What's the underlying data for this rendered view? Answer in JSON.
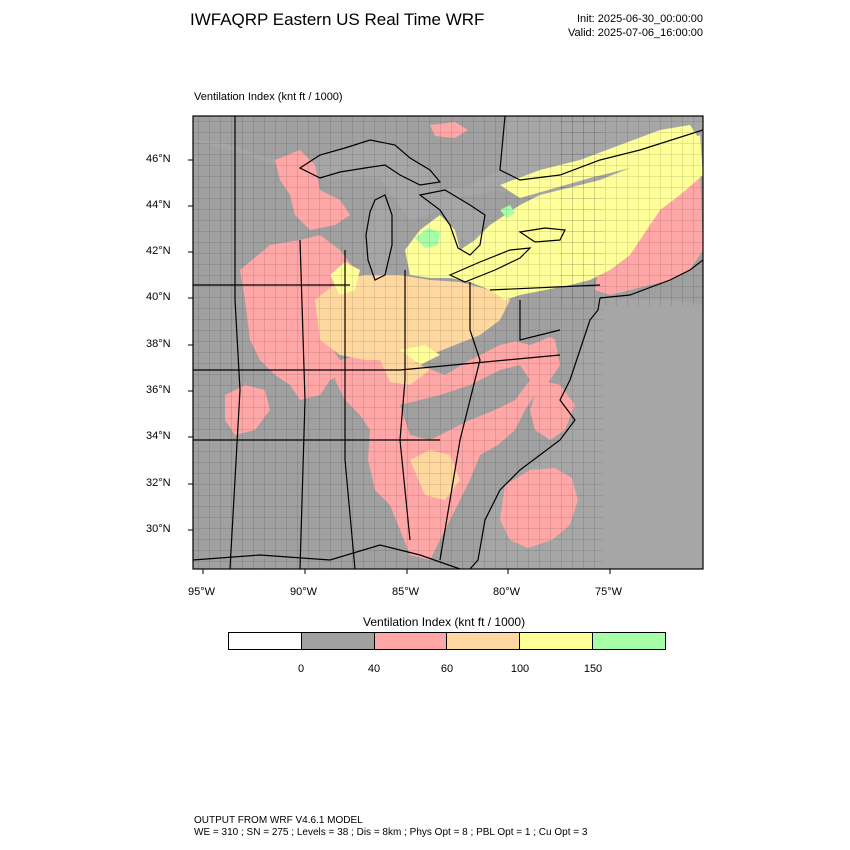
{
  "header": {
    "title": "IWFAQRP Eastern US Real Time WRF",
    "init": "Init: 2025-06-30_00:00:00",
    "valid": "Valid: 2025-07-06_16:00:00"
  },
  "field_label": "Ventilation Index   (knt ft / 1000)",
  "map": {
    "lat_labels": [
      "46°N",
      "44°N",
      "42°N",
      "40°N",
      "38°N",
      "36°N",
      "34°N",
      "32°N",
      "30°N"
    ],
    "lon_labels": [
      "95°W",
      "90°W",
      "85°W",
      "80°W",
      "75°W"
    ],
    "colors": {
      "water": "#a6a6a6",
      "land_low": "#a0a0a0",
      "pink": "#ffa6a6",
      "orange": "#ffd8a0",
      "yellow": "#ffff99",
      "green": "#a6ffa6",
      "frame": "#000000"
    }
  },
  "colorbar": {
    "title": "Ventilation Index  (knt ft / 1000)",
    "colors": [
      "#ffffff",
      "#a0a0a0",
      "#ffa6a6",
      "#ffd8a0",
      "#ffff99",
      "#a6ffa6"
    ],
    "ticks": [
      "0",
      "40",
      "60",
      "100",
      "150"
    ]
  },
  "footer": {
    "line1": "OUTPUT FROM WRF V4.6.1 MODEL",
    "line2": "WE = 310 ; SN = 275 ; Levels = 38 ; Dis = 8km ; Phys Opt = 8 ; PBL Opt = 1 ; Cu Opt = 3"
  }
}
